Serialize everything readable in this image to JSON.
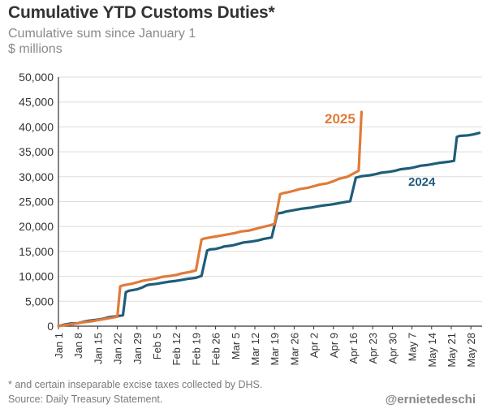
{
  "title": "Cumulative YTD Customs Duties*",
  "subtitle1": "Cumulative sum since January 1",
  "subtitle2": "$ millions",
  "footnote": "* and certain inseparable excise taxes collected by DHS.",
  "source": "Source: Daily Treasury Statement.",
  "handle": "@ernietedeschi",
  "colors": {
    "series_2024": "#1f5d7a",
    "series_2025": "#e07b39",
    "grid": "#dddddd",
    "axis": "#333333"
  },
  "chart_data": {
    "type": "line",
    "xlabel": "",
    "ylabel": "",
    "ylim": [
      0,
      50000
    ],
    "yticks": [
      0,
      5000,
      10000,
      15000,
      20000,
      25000,
      30000,
      35000,
      40000,
      45000,
      50000
    ],
    "ytick_labels": [
      "0",
      "5,000",
      "10,000",
      "15,000",
      "20,000",
      "25,000",
      "30,000",
      "35,000",
      "40,000",
      "45,000",
      "50,000"
    ],
    "xlim": [
      "Jan 1",
      "Jun 1"
    ],
    "xtick_labels": [
      "Jan 1",
      "Jan 8",
      "Jan 15",
      "Jan 22",
      "Jan 29",
      "Feb 5",
      "Feb 12",
      "Feb 19",
      "Feb 26",
      "Mar 5",
      "Mar 12",
      "Mar 19",
      "Mar 26",
      "Apr 2",
      "Apr 9",
      "Apr 16",
      "Apr 23",
      "Apr 30",
      "May 7",
      "May 14",
      "May 21",
      "May 28"
    ],
    "grid": true,
    "series": [
      {
        "name": "2024",
        "x": [
          "Jan 1",
          "Jan 3",
          "Jan 5",
          "Jan 8",
          "Jan 10",
          "Jan 12",
          "Jan 15",
          "Jan 17",
          "Jan 19",
          "Jan 22",
          "Jan 24",
          "Jan 25",
          "Jan 26",
          "Jan 29",
          "Jan 31",
          "Feb 1",
          "Feb 2",
          "Feb 5",
          "Feb 7",
          "Feb 9",
          "Feb 12",
          "Feb 14",
          "Feb 16",
          "Feb 19",
          "Feb 21",
          "Feb 23",
          "Feb 24",
          "Feb 26",
          "Feb 28",
          "Mar 1",
          "Mar 4",
          "Mar 6",
          "Mar 8",
          "Mar 11",
          "Mar 13",
          "Mar 15",
          "Mar 18",
          "Mar 20",
          "Mar 22",
          "Mar 23",
          "Mar 25",
          "Mar 27",
          "Mar 29",
          "Apr 1",
          "Apr 3",
          "Apr 5",
          "Apr 8",
          "Apr 10",
          "Apr 12",
          "Apr 15",
          "Apr 17",
          "Apr 19",
          "Apr 22",
          "Apr 24",
          "Apr 26",
          "Apr 29",
          "May 1",
          "May 3",
          "May 6",
          "May 8",
          "May 10",
          "May 13",
          "May 15",
          "May 17",
          "May 20",
          "May 22",
          "May 23",
          "May 24",
          "May 27",
          "May 29",
          "May 31"
        ],
        "values": [
          0,
          300,
          500,
          600,
          900,
          1100,
          1300,
          1500,
          1800,
          2000,
          2200,
          6800,
          7100,
          7400,
          7800,
          8100,
          8300,
          8500,
          8700,
          8900,
          9100,
          9300,
          9500,
          9700,
          10100,
          15200,
          15400,
          15500,
          15800,
          16000,
          16200,
          16500,
          16800,
          17000,
          17200,
          17500,
          17800,
          22600,
          22800,
          23000,
          23200,
          23400,
          23600,
          23800,
          24000,
          24200,
          24400,
          24600,
          24800,
          25100,
          29800,
          30100,
          30300,
          30500,
          30800,
          31000,
          31200,
          31500,
          31700,
          31900,
          32200,
          32400,
          32600,
          32800,
          33000,
          33200,
          38000,
          38200,
          38300,
          38500,
          38800
        ]
      },
      {
        "name": "2025",
        "x": [
          "Jan 1",
          "Jan 3",
          "Jan 6",
          "Jan 8",
          "Jan 10",
          "Jan 13",
          "Jan 15",
          "Jan 17",
          "Jan 20",
          "Jan 22",
          "Jan 23",
          "Jan 24",
          "Jan 27",
          "Jan 29",
          "Jan 31",
          "Feb 3",
          "Feb 5",
          "Feb 7",
          "Feb 10",
          "Feb 12",
          "Feb 14",
          "Feb 17",
          "Feb 19",
          "Feb 21",
          "Feb 22",
          "Feb 24",
          "Feb 26",
          "Feb 28",
          "Mar 3",
          "Mar 5",
          "Mar 7",
          "Mar 10",
          "Mar 12",
          "Mar 14",
          "Mar 17",
          "Mar 19",
          "Mar 21",
          "Mar 22",
          "Mar 24",
          "Mar 26",
          "Mar 28",
          "Mar 31",
          "Apr 2",
          "Apr 4",
          "Apr 7",
          "Apr 9",
          "Apr 11",
          "Apr 14",
          "Apr 16",
          "Apr 18",
          "Apr 19"
        ],
        "values": [
          0,
          200,
          400,
          600,
          800,
          1000,
          1200,
          1400,
          1700,
          1900,
          8000,
          8200,
          8500,
          8800,
          9100,
          9400,
          9600,
          9900,
          10100,
          10300,
          10600,
          10900,
          11200,
          17400,
          17600,
          17800,
          18000,
          18200,
          18500,
          18700,
          19000,
          19200,
          19500,
          19800,
          20200,
          20500,
          26500,
          26700,
          26900,
          27200,
          27500,
          27800,
          28100,
          28400,
          28700,
          29100,
          29600,
          30000,
          30600,
          31200,
          43000
        ]
      }
    ],
    "annotations": [
      {
        "text": "2025",
        "series": "2025"
      },
      {
        "text": "2024",
        "series": "2024"
      }
    ]
  }
}
